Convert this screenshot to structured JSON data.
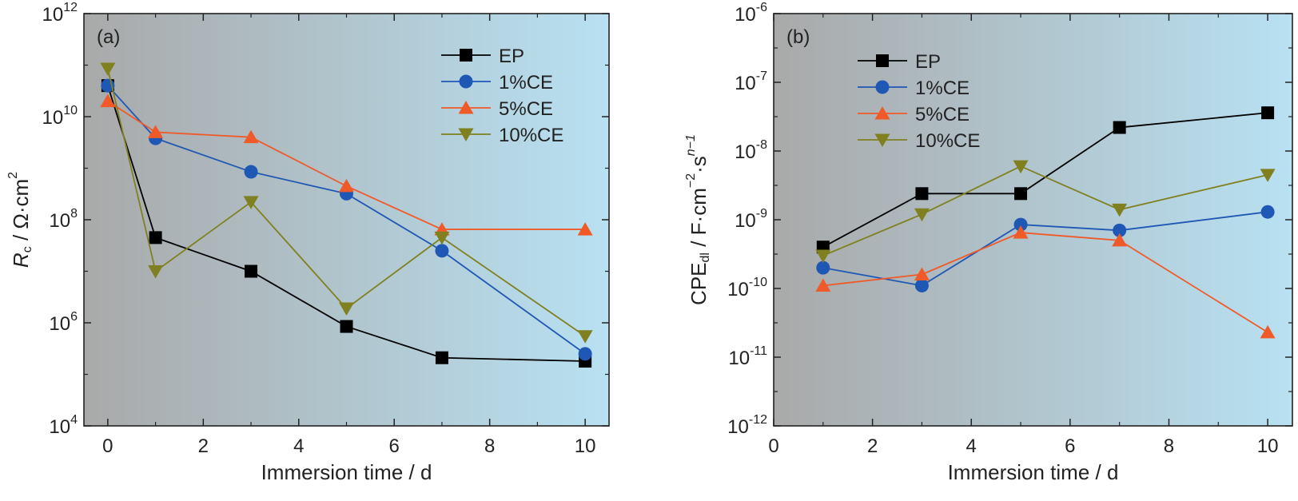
{
  "chart_data": [
    {
      "type": "line",
      "panel_label": "(a)",
      "xlabel": "Immersion time / d",
      "ylabel_parts": [
        "R",
        "c",
        " / Ω·cm",
        "2"
      ],
      "yscale": "log",
      "xlim": [
        -0.5,
        10.5
      ],
      "ylim": [
        10000.0,
        1000000000000.0
      ],
      "x_ticks": [
        0,
        2,
        4,
        6,
        8,
        10
      ],
      "x_tick_labels": [
        "0",
        "2",
        "4",
        "6",
        "8",
        "10"
      ],
      "y_ticks": [
        {
          "value": 10000.0,
          "base": "10",
          "exp": "4"
        },
        {
          "value": 1000000.0,
          "base": "10",
          "exp": "6"
        },
        {
          "value": 100000000.0,
          "base": "10",
          "exp": "8"
        },
        {
          "value": 10000000000.0,
          "base": "10",
          "exp": "10"
        },
        {
          "value": 1000000000000.0,
          "base": "10",
          "exp": "12"
        }
      ],
      "legend_position": "top-right",
      "series": [
        {
          "name": "EP",
          "color": "#000000",
          "marker": "square",
          "x": [
            0,
            1,
            3,
            5,
            7,
            10
          ],
          "y": [
            40000000000.0,
            45000000.0,
            10000000.0,
            850000.0,
            210000.0,
            180000.0
          ]
        },
        {
          "name": "1%CE",
          "color": "#1f57b5",
          "marker": "circle",
          "x": [
            0,
            1,
            3,
            5,
            7,
            10
          ],
          "y": [
            40000000000.0,
            3800000000.0,
            850000000.0,
            320000000.0,
            25000000.0,
            250000.0
          ]
        },
        {
          "name": "5%CE",
          "color": "#f05a28",
          "marker": "triangle-up",
          "x": [
            0,
            1,
            3,
            5,
            7,
            10
          ],
          "y": [
            20000000000.0,
            5000000000.0,
            4000000000.0,
            450000000.0,
            65000000.0,
            65000000.0
          ]
        },
        {
          "name": "10%CE",
          "color": "#808020",
          "marker": "triangle-down",
          "x": [
            0,
            1,
            3,
            5,
            7,
            10
          ],
          "y": [
            85000000000.0,
            10000000.0,
            220000000.0,
            1900000.0,
            45000000.0,
            550000.0
          ]
        }
      ]
    },
    {
      "type": "line",
      "panel_label": "(b)",
      "xlabel": "Immersion time / d",
      "ylabel_parts": [
        "CPE",
        "dl",
        " / F·cm",
        "−2",
        "·s",
        "n−1"
      ],
      "yscale": "log",
      "xlim": [
        0,
        10.5
      ],
      "ylim": [
        1e-12,
        1e-06
      ],
      "x_ticks": [
        0,
        2,
        4,
        6,
        8,
        10
      ],
      "x_tick_labels": [
        "0",
        "2",
        "4",
        "6",
        "8",
        "10"
      ],
      "y_ticks": [
        {
          "value": 1e-12,
          "base": "10",
          "exp": "-12"
        },
        {
          "value": 1e-11,
          "base": "10",
          "exp": "-11"
        },
        {
          "value": 1e-10,
          "base": "10",
          "exp": "-10"
        },
        {
          "value": 1e-09,
          "base": "10",
          "exp": "-9"
        },
        {
          "value": 1e-08,
          "base": "10",
          "exp": "-8"
        },
        {
          "value": 1e-07,
          "base": "10",
          "exp": "-7"
        },
        {
          "value": 1e-06,
          "base": "10",
          "exp": "-6"
        }
      ],
      "legend_position": "top-left",
      "series": [
        {
          "name": "EP",
          "color": "#000000",
          "marker": "square",
          "x": [
            1,
            3,
            5,
            7,
            10
          ],
          "y": [
            4e-10,
            2.4e-09,
            2.4e-09,
            2.2e-08,
            3.6e-08
          ]
        },
        {
          "name": "1%CE",
          "color": "#1f57b5",
          "marker": "circle",
          "x": [
            1,
            3,
            5,
            7,
            10
          ],
          "y": [
            2e-10,
            1.1e-10,
            8.5e-10,
            7e-10,
            1.3e-09
          ]
        },
        {
          "name": "5%CE",
          "color": "#f05a28",
          "marker": "triangle-up",
          "x": [
            1,
            3,
            5,
            7,
            10
          ],
          "y": [
            1.1e-10,
            1.6e-10,
            6.5e-10,
            5e-10,
            2.3e-11
          ]
        },
        {
          "name": "10%CE",
          "color": "#808020",
          "marker": "triangle-down",
          "x": [
            1,
            3,
            5,
            7,
            10
          ],
          "y": [
            3e-10,
            1.2e-09,
            6e-09,
            1.4e-09,
            4.5e-09
          ]
        }
      ]
    }
  ],
  "colors": {
    "background_left": "#a9a9a9",
    "background_right": "#b8e1f2"
  }
}
